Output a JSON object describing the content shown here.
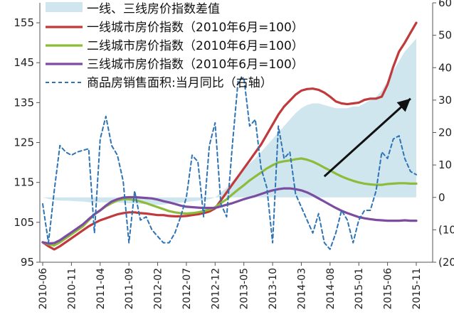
{
  "chart_data": {
    "type": "line",
    "x": [
      "2010-06",
      "2010-07",
      "2010-08",
      "2010-09",
      "2010-10",
      "2010-11",
      "2010-12",
      "2011-01",
      "2011-02",
      "2011-03",
      "2011-04",
      "2011-05",
      "2011-06",
      "2011-07",
      "2011-08",
      "2011-09",
      "2011-10",
      "2011-11",
      "2011-12",
      "2012-01",
      "2012-02",
      "2012-03",
      "2012-04",
      "2012-05",
      "2012-06",
      "2012-07",
      "2012-08",
      "2012-09",
      "2012-10",
      "2012-11",
      "2012-12",
      "2013-01",
      "2013-02",
      "2013-03",
      "2013-04",
      "2013-05",
      "2013-06",
      "2013-07",
      "2013-08",
      "2013-09",
      "2013-10",
      "2013-11",
      "2013-12",
      "2014-01",
      "2014-02",
      "2014-03",
      "2014-04",
      "2014-05",
      "2014-06",
      "2014-07",
      "2014-08",
      "2014-09",
      "2014-10",
      "2014-11",
      "2014-12",
      "2015-01",
      "2015-02",
      "2015-03",
      "2015-04",
      "2015-05",
      "2015-06",
      "2015-07",
      "2015-08",
      "2015-09",
      "2015-10",
      "2015-11"
    ],
    "x_tick_labels": [
      "2010-06",
      "2010-11",
      "2011-04",
      "2011-09",
      "2012-02",
      "2012-07",
      "2012-12",
      "2013-05",
      "2013-10",
      "2014-03",
      "2014-08",
      "2015-01",
      "2015-06",
      "2015-11"
    ],
    "left_axis": {
      "ylim": [
        95,
        160
      ],
      "ticks": [
        "95",
        "105",
        "115",
        "125",
        "135",
        "145",
        "155"
      ]
    },
    "right_axis": {
      "ylim": [
        -20,
        60
      ],
      "ticks": [
        {
          "value": -20,
          "label": "(20",
          "color": "#c00000"
        },
        {
          "value": -10,
          "label": "(10",
          "color": "#c00000"
        },
        {
          "value": 0,
          "label": "0",
          "color": "#222222"
        },
        {
          "value": 10,
          "label": "10",
          "color": "#222222"
        },
        {
          "value": 20,
          "label": "20",
          "color": "#222222"
        },
        {
          "value": 30,
          "label": "30",
          "color": "#222222"
        },
        {
          "value": 40,
          "label": "40",
          "color": "#222222"
        },
        {
          "value": 50,
          "label": "50",
          "color": "#222222"
        },
        {
          "value": 60,
          "label": "60",
          "color": "#222222"
        }
      ]
    },
    "series": [
      {
        "name": "一线、三线房价指数差值",
        "kind": "area",
        "axis": "right",
        "color": "#cfe6ee",
        "values": [
          0,
          -0.5,
          -0.8,
          -1,
          -1,
          -1.1,
          -1.2,
          -1.3,
          -1.5,
          -1.6,
          -1.5,
          -1.5,
          -1.5,
          -1.6,
          -1.7,
          -1.8,
          -1.9,
          -2,
          -2.1,
          -2.2,
          -2.3,
          -2.2,
          -2,
          -1.8,
          -1.6,
          -1.4,
          -1.2,
          -1,
          -0.8,
          -0.6,
          0,
          1.5,
          3,
          5,
          7,
          9,
          10.5,
          12,
          14,
          16,
          18,
          20,
          22,
          24,
          26,
          27.5,
          28.5,
          29,
          29,
          28.5,
          28,
          27.5,
          27.5,
          27.5,
          28,
          28,
          29,
          30,
          31,
          33,
          36,
          39,
          42,
          45,
          47,
          49
        ]
      },
      {
        "name": "一线城市房价指数（2010年6月=100）",
        "kind": "line",
        "axis": "left",
        "color": "#c0393b",
        "values": [
          100,
          99,
          98.2,
          99,
          100,
          101,
          102,
          103,
          104,
          104.8,
          105.5,
          106,
          106.5,
          107,
          107.3,
          107.5,
          107.5,
          107.3,
          107.2,
          107,
          106.8,
          106.8,
          106.6,
          106.5,
          106.5,
          106.6,
          106.8,
          107,
          107.3,
          107.7,
          108.5,
          110.5,
          112.5,
          114.5,
          116.5,
          118.5,
          120.5,
          122.5,
          124.5,
          127,
          129.5,
          132,
          134,
          135.5,
          137,
          138,
          138.4,
          138.5,
          138.2,
          137.5,
          136.5,
          135.3,
          134.8,
          134.6,
          134.8,
          135,
          135.7,
          136,
          136,
          136.5,
          139.5,
          144,
          147.8,
          150,
          152.5,
          155
        ]
      },
      {
        "name": "二线城市房价指数（2010年6月=100）",
        "kind": "line",
        "axis": "left",
        "color": "#8dbb3c",
        "values": [
          100,
          99.5,
          99.2,
          100,
          101,
          102,
          103,
          104,
          105.5,
          107,
          108,
          109,
          109.8,
          110.5,
          110.8,
          110.8,
          110.6,
          110.2,
          109.8,
          109.3,
          108.8,
          108.3,
          107.8,
          107.5,
          107.3,
          107.2,
          107.3,
          107.5,
          107.8,
          108.2,
          108.8,
          109.8,
          110.8,
          112,
          113.2,
          114.3,
          115.5,
          116.5,
          117.5,
          118.5,
          119.3,
          120,
          120.3,
          120.5,
          120.8,
          121,
          120.7,
          120.2,
          119.5,
          118.7,
          118,
          117.2,
          116.5,
          115.9,
          115.4,
          115,
          114.7,
          114.5,
          114.4,
          114.4,
          114.6,
          114.7,
          114.8,
          114.8,
          114.7,
          114.7
        ]
      },
      {
        "name": "三线城市房价指数（2010年6月=100）",
        "kind": "line",
        "axis": "left",
        "color": "#7b4ca0",
        "values": [
          100,
          99.7,
          99.8,
          100.5,
          101.5,
          102.5,
          103.5,
          104.5,
          105.8,
          107,
          108,
          109.2,
          110.2,
          110.8,
          111.2,
          111.3,
          111.3,
          111.2,
          111.1,
          111,
          110.7,
          110.3,
          110,
          109.6,
          109.2,
          108.9,
          108.8,
          108.7,
          108.6,
          108.6,
          108.6,
          109,
          109.4,
          109.8,
          110.3,
          110.8,
          111.2,
          111.6,
          112.1,
          112.6,
          113,
          113.3,
          113.5,
          113.5,
          113.3,
          113,
          112.5,
          111.8,
          111,
          110.2,
          109.4,
          108.6,
          107.9,
          107.3,
          106.8,
          106.3,
          106,
          105.8,
          105.6,
          105.5,
          105.4,
          105.4,
          105.4,
          105.5,
          105.4,
          105.4
        ]
      },
      {
        "name": "商品房销售面积:当月同比（右轴）",
        "kind": "line-dashed",
        "axis": "right",
        "color": "#2e74b5",
        "values": [
          -2,
          -14,
          2,
          16,
          14,
          13,
          14,
          14.5,
          15,
          -11,
          18,
          25,
          16,
          13,
          5,
          -14,
          2,
          -7,
          -6,
          -10,
          -12,
          -14,
          -14,
          -11,
          -6,
          0,
          13,
          11,
          -6,
          16,
          23,
          -2,
          -6,
          16,
          36,
          37,
          22,
          24,
          9,
          3,
          -14,
          22,
          12,
          14,
          1,
          -3,
          -7,
          -11,
          -5,
          -14,
          -16,
          -11,
          -4,
          -7,
          -14,
          -7,
          -4,
          -4,
          2,
          14,
          12,
          18,
          19,
          12,
          8,
          7
        ]
      }
    ]
  },
  "arrow_color": "#111111"
}
